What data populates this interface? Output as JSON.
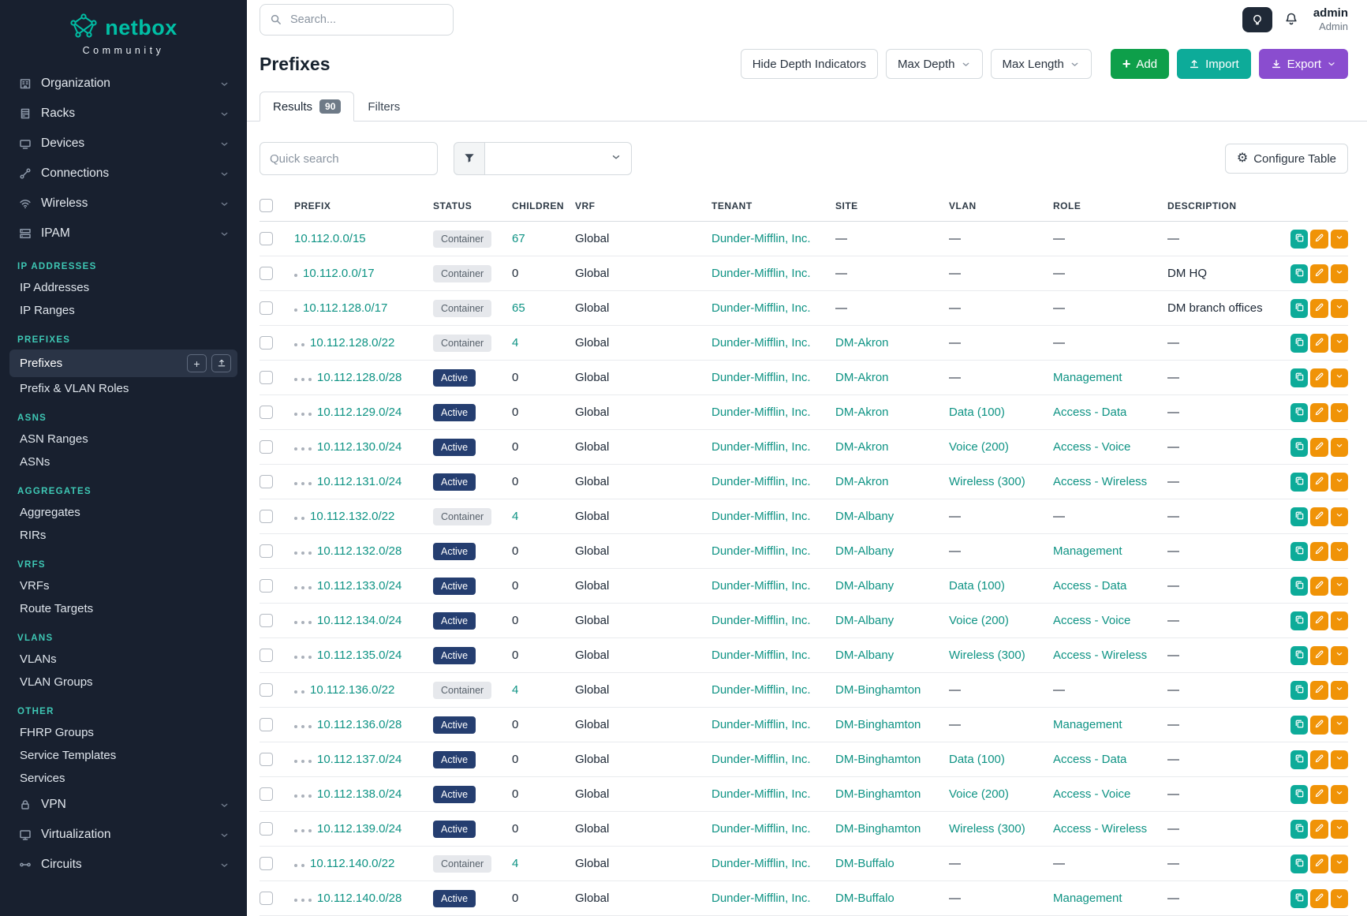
{
  "colors": {
    "brand_teal": "#00bfa5",
    "link_teal": "#0e9384",
    "sidebar_bg": "#18202f",
    "add_green": "#0e9f4a",
    "import_teal": "#0dab99",
    "export_purple": "#8a4dcf",
    "edit_orange": "#f09307",
    "active_badge_bg": "#253e70",
    "container_badge_bg": "#e6e8ec"
  },
  "sidebar": {
    "brand": "netbox",
    "brand_subtitle": "Community",
    "top_items": [
      {
        "label": "Organization",
        "icon": "organization"
      },
      {
        "label": "Racks",
        "icon": "racks"
      },
      {
        "label": "Devices",
        "icon": "devices"
      },
      {
        "label": "Connections",
        "icon": "connections"
      },
      {
        "label": "Wireless",
        "icon": "wireless"
      },
      {
        "label": "IPAM",
        "icon": "ipam"
      }
    ],
    "ipam_sections": [
      {
        "title": "IP ADDRESSES",
        "items": [
          "IP Addresses",
          "IP Ranges"
        ]
      },
      {
        "title": "PREFIXES",
        "items": [
          "Prefixes",
          "Prefix & VLAN Roles"
        ],
        "active_item": "Prefixes"
      },
      {
        "title": "ASNS",
        "items": [
          "ASN Ranges",
          "ASNs"
        ]
      },
      {
        "title": "AGGREGATES",
        "items": [
          "Aggregates",
          "RIRs"
        ]
      },
      {
        "title": "VRFS",
        "items": [
          "VRFs",
          "Route Targets"
        ]
      },
      {
        "title": "VLANS",
        "items": [
          "VLANs",
          "VLAN Groups"
        ]
      },
      {
        "title": "OTHER",
        "items": [
          "FHRP Groups",
          "Service Templates",
          "Services"
        ]
      }
    ],
    "bottom_items": [
      {
        "label": "VPN",
        "icon": "vpn"
      },
      {
        "label": "Virtualization",
        "icon": "virtualization"
      },
      {
        "label": "Circuits",
        "icon": "circuits"
      }
    ]
  },
  "topbar": {
    "search_placeholder": "Search...",
    "username": "admin",
    "user_role": "Admin"
  },
  "page": {
    "title": "Prefixes",
    "toolbar": {
      "hide_depth_label": "Hide Depth Indicators",
      "max_depth_label": "Max Depth",
      "max_length_label": "Max Length",
      "add_label": "Add",
      "import_label": "Import",
      "export_label": "Export"
    },
    "tabs": [
      {
        "label": "Results",
        "count": "90",
        "active": true
      },
      {
        "label": "Filters",
        "active": false
      }
    ],
    "controls": {
      "quick_search_placeholder": "Quick search",
      "configure_table_label": "Configure Table"
    }
  },
  "table": {
    "columns": [
      "PREFIX",
      "STATUS",
      "CHILDREN",
      "VRF",
      "TENANT",
      "SITE",
      "VLAN",
      "ROLE",
      "DESCRIPTION"
    ],
    "rows": [
      {
        "depth": 0,
        "prefix": "10.112.0.0/15",
        "status": "Container",
        "children": "67",
        "vrf": "Global",
        "tenant": "Dunder-Mifflin, Inc.",
        "site": "—",
        "vlan": "—",
        "role": "—",
        "description": "—"
      },
      {
        "depth": 1,
        "prefix": "10.112.0.0/17",
        "status": "Container",
        "children": "0",
        "vrf": "Global",
        "tenant": "Dunder-Mifflin, Inc.",
        "site": "—",
        "vlan": "—",
        "role": "—",
        "description": "DM HQ"
      },
      {
        "depth": 1,
        "prefix": "10.112.128.0/17",
        "status": "Container",
        "children": "65",
        "vrf": "Global",
        "tenant": "Dunder-Mifflin, Inc.",
        "site": "—",
        "vlan": "—",
        "role": "—",
        "description": "DM branch offices"
      },
      {
        "depth": 2,
        "prefix": "10.112.128.0/22",
        "status": "Container",
        "children": "4",
        "vrf": "Global",
        "tenant": "Dunder-Mifflin, Inc.",
        "site": "DM-Akron",
        "vlan": "—",
        "role": "—",
        "description": "—"
      },
      {
        "depth": 3,
        "prefix": "10.112.128.0/28",
        "status": "Active",
        "children": "0",
        "vrf": "Global",
        "tenant": "Dunder-Mifflin, Inc.",
        "site": "DM-Akron",
        "vlan": "—",
        "role": "Management",
        "description": "—"
      },
      {
        "depth": 3,
        "prefix": "10.112.129.0/24",
        "status": "Active",
        "children": "0",
        "vrf": "Global",
        "tenant": "Dunder-Mifflin, Inc.",
        "site": "DM-Akron",
        "vlan": "Data (100)",
        "role": "Access - Data",
        "description": "—"
      },
      {
        "depth": 3,
        "prefix": "10.112.130.0/24",
        "status": "Active",
        "children": "0",
        "vrf": "Global",
        "tenant": "Dunder-Mifflin, Inc.",
        "site": "DM-Akron",
        "vlan": "Voice (200)",
        "role": "Access - Voice",
        "description": "—"
      },
      {
        "depth": 3,
        "prefix": "10.112.131.0/24",
        "status": "Active",
        "children": "0",
        "vrf": "Global",
        "tenant": "Dunder-Mifflin, Inc.",
        "site": "DM-Akron",
        "vlan": "Wireless (300)",
        "role": "Access - Wireless",
        "description": "—"
      },
      {
        "depth": 2,
        "prefix": "10.112.132.0/22",
        "status": "Container",
        "children": "4",
        "vrf": "Global",
        "tenant": "Dunder-Mifflin, Inc.",
        "site": "DM-Albany",
        "vlan": "—",
        "role": "—",
        "description": "—"
      },
      {
        "depth": 3,
        "prefix": "10.112.132.0/28",
        "status": "Active",
        "children": "0",
        "vrf": "Global",
        "tenant": "Dunder-Mifflin, Inc.",
        "site": "DM-Albany",
        "vlan": "—",
        "role": "Management",
        "description": "—"
      },
      {
        "depth": 3,
        "prefix": "10.112.133.0/24",
        "status": "Active",
        "children": "0",
        "vrf": "Global",
        "tenant": "Dunder-Mifflin, Inc.",
        "site": "DM-Albany",
        "vlan": "Data (100)",
        "role": "Access - Data",
        "description": "—"
      },
      {
        "depth": 3,
        "prefix": "10.112.134.0/24",
        "status": "Active",
        "children": "0",
        "vrf": "Global",
        "tenant": "Dunder-Mifflin, Inc.",
        "site": "DM-Albany",
        "vlan": "Voice (200)",
        "role": "Access - Voice",
        "description": "—"
      },
      {
        "depth": 3,
        "prefix": "10.112.135.0/24",
        "status": "Active",
        "children": "0",
        "vrf": "Global",
        "tenant": "Dunder-Mifflin, Inc.",
        "site": "DM-Albany",
        "vlan": "Wireless (300)",
        "role": "Access - Wireless",
        "description": "—"
      },
      {
        "depth": 2,
        "prefix": "10.112.136.0/22",
        "status": "Container",
        "children": "4",
        "vrf": "Global",
        "tenant": "Dunder-Mifflin, Inc.",
        "site": "DM-Binghamton",
        "vlan": "—",
        "role": "—",
        "description": "—"
      },
      {
        "depth": 3,
        "prefix": "10.112.136.0/28",
        "status": "Active",
        "children": "0",
        "vrf": "Global",
        "tenant": "Dunder-Mifflin, Inc.",
        "site": "DM-Binghamton",
        "vlan": "—",
        "role": "Management",
        "description": "—"
      },
      {
        "depth": 3,
        "prefix": "10.112.137.0/24",
        "status": "Active",
        "children": "0",
        "vrf": "Global",
        "tenant": "Dunder-Mifflin, Inc.",
        "site": "DM-Binghamton",
        "vlan": "Data (100)",
        "role": "Access - Data",
        "description": "—"
      },
      {
        "depth": 3,
        "prefix": "10.112.138.0/24",
        "status": "Active",
        "children": "0",
        "vrf": "Global",
        "tenant": "Dunder-Mifflin, Inc.",
        "site": "DM-Binghamton",
        "vlan": "Voice (200)",
        "role": "Access - Voice",
        "description": "—"
      },
      {
        "depth": 3,
        "prefix": "10.112.139.0/24",
        "status": "Active",
        "children": "0",
        "vrf": "Global",
        "tenant": "Dunder-Mifflin, Inc.",
        "site": "DM-Binghamton",
        "vlan": "Wireless (300)",
        "role": "Access - Wireless",
        "description": "—"
      },
      {
        "depth": 2,
        "prefix": "10.112.140.0/22",
        "status": "Container",
        "children": "4",
        "vrf": "Global",
        "tenant": "Dunder-Mifflin, Inc.",
        "site": "DM-Buffalo",
        "vlan": "—",
        "role": "—",
        "description": "—"
      },
      {
        "depth": 3,
        "prefix": "10.112.140.0/28",
        "status": "Active",
        "children": "0",
        "vrf": "Global",
        "tenant": "Dunder-Mifflin, Inc.",
        "site": "DM-Buffalo",
        "vlan": "—",
        "role": "Management",
        "description": "—"
      }
    ]
  }
}
